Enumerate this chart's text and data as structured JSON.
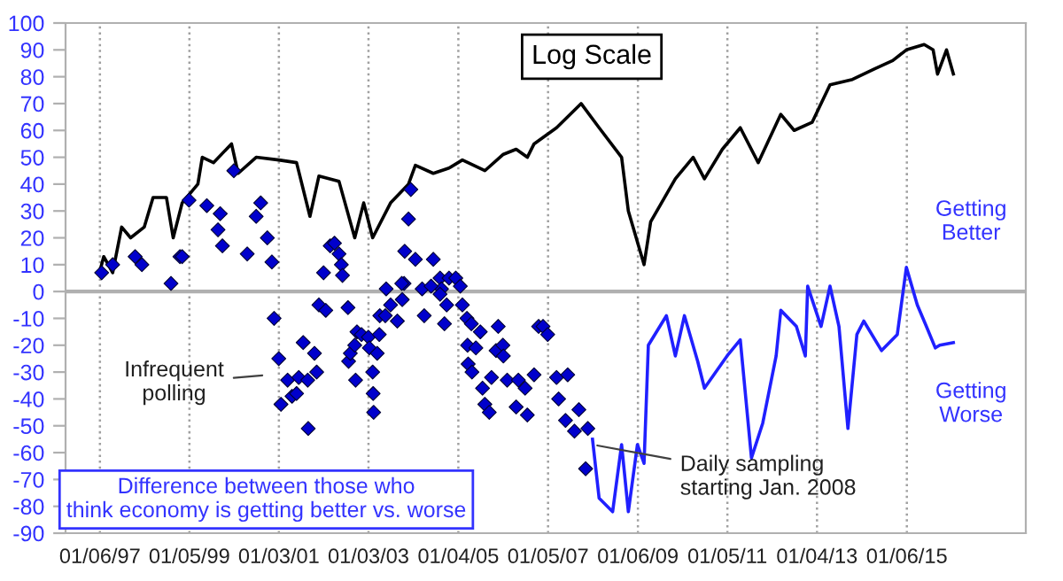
{
  "chart_data": {
    "type": "line",
    "title": "Log Scale",
    "xlim": [
      "1996-04-01",
      "2017-09-01"
    ],
    "ylim": [
      -90,
      100
    ],
    "xticks": [
      {
        "value": "1997-01-06",
        "label": "01/06/97"
      },
      {
        "value": "1999-01-05",
        "label": "01/05/99"
      },
      {
        "value": "2001-01-03",
        "label": "01/03/01"
      },
      {
        "value": "2003-01-03",
        "label": "01/03/03"
      },
      {
        "value": "2005-01-04",
        "label": "01/04/05"
      },
      {
        "value": "2007-01-05",
        "label": "01/05/07"
      },
      {
        "value": "2009-01-06",
        "label": "01/06/09"
      },
      {
        "value": "2011-01-05",
        "label": "01/05/11"
      },
      {
        "value": "2013-01-04",
        "label": "01/04/13"
      },
      {
        "value": "2015-01-06",
        "label": "01/06/15"
      }
    ],
    "yticks": [
      -90,
      -80,
      -70,
      -60,
      -50,
      -40,
      -30,
      -20,
      -10,
      0,
      10,
      20,
      30,
      40,
      50,
      60,
      70,
      80,
      90,
      100
    ],
    "grid": "x",
    "legend": false,
    "ref_lines": [
      {
        "axis": "y",
        "value": 0,
        "color": "#b0b0b0"
      }
    ],
    "series": [
      {
        "color": "#000000",
        "x": [
          "1997-01-02",
          "1997-02-06",
          "1997-04-20",
          "1997-07-02",
          "1997-09-13",
          "1998-01-02",
          "1998-03-15",
          "1998-07-02",
          "1998-08-26",
          "1998-11-07",
          "1999-03-15",
          "1999-04-20",
          "1999-07-20",
          "1999-12-14",
          "2000-02-06",
          "2000-07-02",
          "2001-01-02",
          "2001-05-27",
          "2001-09-13",
          "2001-11-25",
          "2002-05-08",
          "2002-09-13",
          "2002-11-25",
          "2003-02-06",
          "2003-07-02",
          "2003-11-25",
          "2004-01-20",
          "2004-06-14",
          "2004-10-20",
          "2005-02-06",
          "2005-08-08",
          "2006-01-02",
          "2006-04-20",
          "2006-07-20",
          "2006-09-13",
          "2007-03-15",
          "2007-10-01",
          "2008-02-25",
          "2008-08-26",
          "2008-10-20",
          "2009-02-25",
          "2009-04-20",
          "2009-11-07",
          "2010-04-01",
          "2010-07-02",
          "2010-11-25",
          "2011-04-20",
          "2011-09-13",
          "2012-03-15",
          "2012-07-02",
          "2012-11-25",
          "2013-04-20",
          "2013-10-20",
          "2014-04-20",
          "2014-09-13",
          "2015-01-02",
          "2015-05-27",
          "2015-08-08",
          "2015-09-13",
          "2015-11-25",
          "2016-01-20"
        ],
        "values": [
          7,
          13,
          7,
          24,
          20,
          24,
          35,
          35,
          20,
          33,
          40,
          50,
          48,
          55,
          44,
          50,
          49,
          48,
          28,
          43,
          41,
          20,
          33,
          20,
          33,
          40,
          47,
          44,
          46,
          49,
          45,
          51,
          53,
          50,
          55,
          61,
          70,
          61,
          50,
          30,
          10,
          26,
          42,
          50,
          42,
          53,
          61,
          48,
          66,
          60,
          63,
          77,
          79,
          83,
          86,
          90,
          92,
          90,
          81,
          90,
          81
        ]
      },
      {
        "type": "scatter",
        "color": "#0000cc",
        "marker": "diamond",
        "x": [
          "1997-01-20",
          "1997-04-20",
          "1997-10-20",
          "1997-12-14",
          "1998-08-08",
          "1998-10-20",
          "1998-11-07",
          "1999-01-02",
          "1999-05-27",
          "1999-09-13",
          "1999-08-26",
          "1999-10-01",
          "2000-01-02",
          "2000-04-20",
          "2000-07-02",
          "2000-08-08",
          "2000-10-01",
          "2000-11-07",
          "2002-01-02",
          "2002-02-25",
          "2002-04-01",
          "2002-05-08",
          "2002-05-27",
          "2002-06-05",
          "2003-05-27",
          "2003-10-20",
          "2003-12-14",
          "2003-11-25",
          "2003-10-25",
          "2004-01-20",
          "2004-03-15",
          "2004-06-14",
          "2004-08-08",
          "2004-08-20",
          "2004-10-20",
          "2004-12-14",
          "2005-01-20",
          "2000-11-25",
          "2001-01-02",
          "2001-01-20",
          "2001-03-15",
          "2001-04-20",
          "2001-05-27",
          "2001-06-14",
          "2001-07-20",
          "2001-08-26",
          "2001-08-30",
          "2001-10-20",
          "2001-11-07",
          "2001-11-25",
          "2002-01-20",
          "2002-07-20",
          "2002-07-25",
          "2002-08-08",
          "2002-09-13",
          "2002-10-01",
          "2002-09-20",
          "2002-11-07",
          "2003-01-02",
          "2003-01-10",
          "2003-02-06",
          "2003-02-10",
          "2003-02-14",
          "2003-03-15",
          "2003-04-01",
          "2003-04-05",
          "2003-05-20",
          "2003-07-02",
          "2003-08-26",
          "2003-10-01",
          "2003-10-05",
          "2004-04-01",
          "2004-05-27",
          "2004-08-08",
          "2004-09-13",
          "2004-10-01",
          "2005-02-06",
          "2005-03-15",
          "2005-03-20",
          "2005-04-20",
          "2005-03-25",
          "2005-04-25",
          "2005-05-27",
          "2005-07-02",
          "2005-07-20",
          "2005-08-08",
          "2005-09-13",
          "2005-10-01",
          "2005-11-07",
          "2005-11-25",
          "2006-01-02",
          "2006-01-06",
          "2006-02-06",
          "2006-04-20",
          "2006-05-08",
          "2006-07-02",
          "2006-07-20",
          "2006-10-20",
          "2006-11-25",
          "2007-01-02",
          "2006-09-13",
          "2007-03-15",
          "2007-04-01",
          "2007-06-14",
          "2007-05-27",
          "2007-09-13",
          "2007-08-08",
          "2007-11-25",
          "2007-11-07"
        ],
        "values": [
          7,
          10,
          13,
          10,
          3,
          13,
          13,
          34,
          32,
          29,
          23,
          17,
          45,
          14,
          28,
          33,
          20,
          11,
          7,
          17,
          18,
          14,
          10,
          6,
          1,
          3,
          38,
          27,
          15,
          12,
          1,
          12,
          5,
          1,
          5,
          5,
          2,
          -10,
          -25,
          -42,
          -33,
          -39,
          -38,
          -32,
          -19,
          -33,
          -51,
          -23,
          -30,
          -5,
          -7,
          -6,
          -26,
          -23,
          -20,
          -15,
          -33,
          -16,
          -17,
          -21,
          -30,
          -38,
          -45,
          -23,
          -16,
          -9,
          -9,
          -5,
          -11,
          3,
          -3,
          -9,
          2,
          -1,
          -12,
          -5,
          -5,
          -10,
          -20,
          -12,
          -27,
          -30,
          -21,
          -15,
          -36,
          -42,
          -45,
          -32,
          -22,
          -13,
          -20,
          -24,
          -33,
          -43,
          -33,
          -36,
          -46,
          -13,
          -13,
          -16,
          -31,
          -32,
          -40,
          -31,
          -48,
          -44,
          -52,
          -51,
          -66
        ]
      },
      {
        "color": "#2020ff",
        "x": [
          "2008-01-02",
          "2008-02-25",
          "2008-06-14",
          "2008-08-26",
          "2008-10-20",
          "2009-01-02",
          "2009-02-25",
          "2009-04-01",
          "2009-08-26",
          "2009-11-07",
          "2010-01-20",
          "2010-05-08",
          "2010-07-02",
          "2011-01-02",
          "2011-04-20",
          "2011-07-20",
          "2011-10-20",
          "2012-02-06",
          "2012-03-15",
          "2012-07-20",
          "2012-10-01",
          "2012-10-20",
          "2013-02-06",
          "2013-04-20",
          "2013-07-02",
          "2013-09-13",
          "2013-11-25",
          "2014-01-20",
          "2014-06-14",
          "2014-10-20",
          "2015-01-02",
          "2015-04-01",
          "2015-06-14",
          "2015-08-26",
          "2015-10-01",
          "2016-01-20"
        ],
        "values": [
          -55,
          -77,
          -82,
          -57,
          -82,
          -57,
          -64,
          -20,
          -9,
          -24,
          -9,
          -26,
          -36,
          -24,
          -18,
          -62,
          -49,
          -24,
          -7,
          -13,
          -24,
          2,
          -13,
          2,
          -13,
          -51,
          -16,
          -11,
          -22,
          -16,
          9,
          -5,
          -13,
          -21,
          -20,
          -19
        ]
      }
    ],
    "annotations": [
      "Infrequent\npolling",
      {
        "text": "Daily sampling\nstarting Jan. 2008",
        "x": "2008-01-02",
        "y": -57
      },
      "Getting\nBetter",
      "Getting\nWorse",
      "Difference between those who\nthink economy is getting better vs. worse"
    ]
  }
}
